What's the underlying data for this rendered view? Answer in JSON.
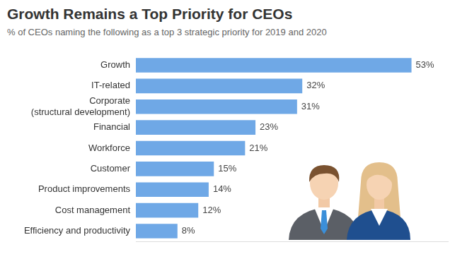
{
  "chart_data": {
    "type": "bar",
    "orientation": "horizontal",
    "title": "Growth Remains a Top Priority for CEOs",
    "subtitle": "% of CEOs naming the following as a top 3 strategic priority for 2019 and 2020",
    "categories": [
      "Growth",
      "IT-related",
      "Corporate (structural development)",
      "Financial",
      "Workforce",
      "Customer",
      "Product improvements",
      "Cost management",
      "Efficiency and productivity"
    ],
    "values": [
      53,
      32,
      31,
      23,
      21,
      15,
      14,
      12,
      8
    ],
    "value_labels": [
      "53%",
      "32%",
      "31%",
      "23%",
      "21%",
      "15%",
      "14%",
      "12%",
      "8%"
    ],
    "color": "#6fa8e6",
    "xlim": [
      0,
      60
    ],
    "grid": false,
    "data_labels": true,
    "tick_labels": "y"
  }
}
